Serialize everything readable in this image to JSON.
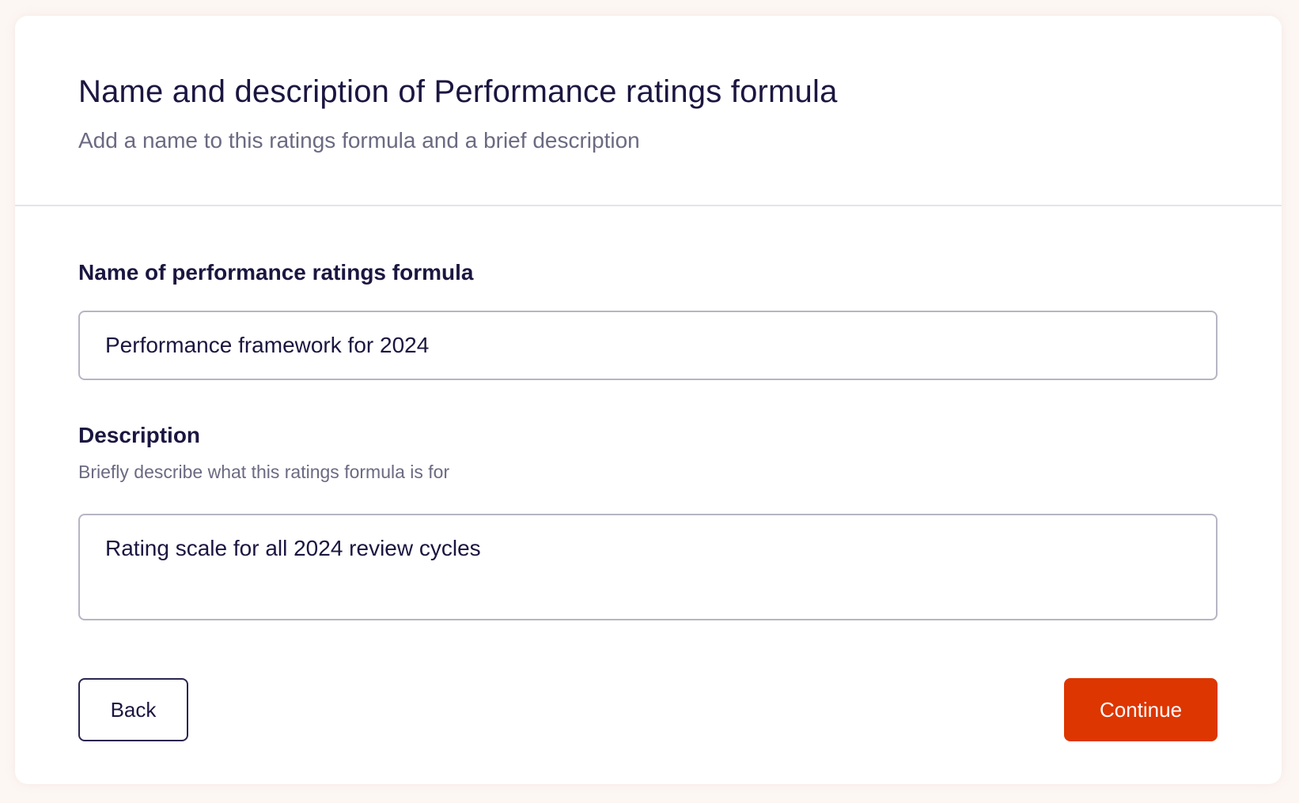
{
  "header": {
    "title": "Name and description of Performance ratings formula",
    "subtitle": "Add a name to this ratings formula and a brief description"
  },
  "form": {
    "name_field": {
      "label": "Name of performance ratings formula",
      "value": "Performance framework for 2024"
    },
    "description_field": {
      "label": "Description",
      "hint": "Briefly describe what this ratings formula is for",
      "value": "Rating scale for all 2024 review cycles"
    }
  },
  "actions": {
    "back_label": "Back",
    "continue_label": "Continue"
  },
  "colors": {
    "accent": "#dd3600",
    "text_primary": "#1b1640",
    "text_secondary": "#6b6a82",
    "border": "#b6b5c3"
  }
}
